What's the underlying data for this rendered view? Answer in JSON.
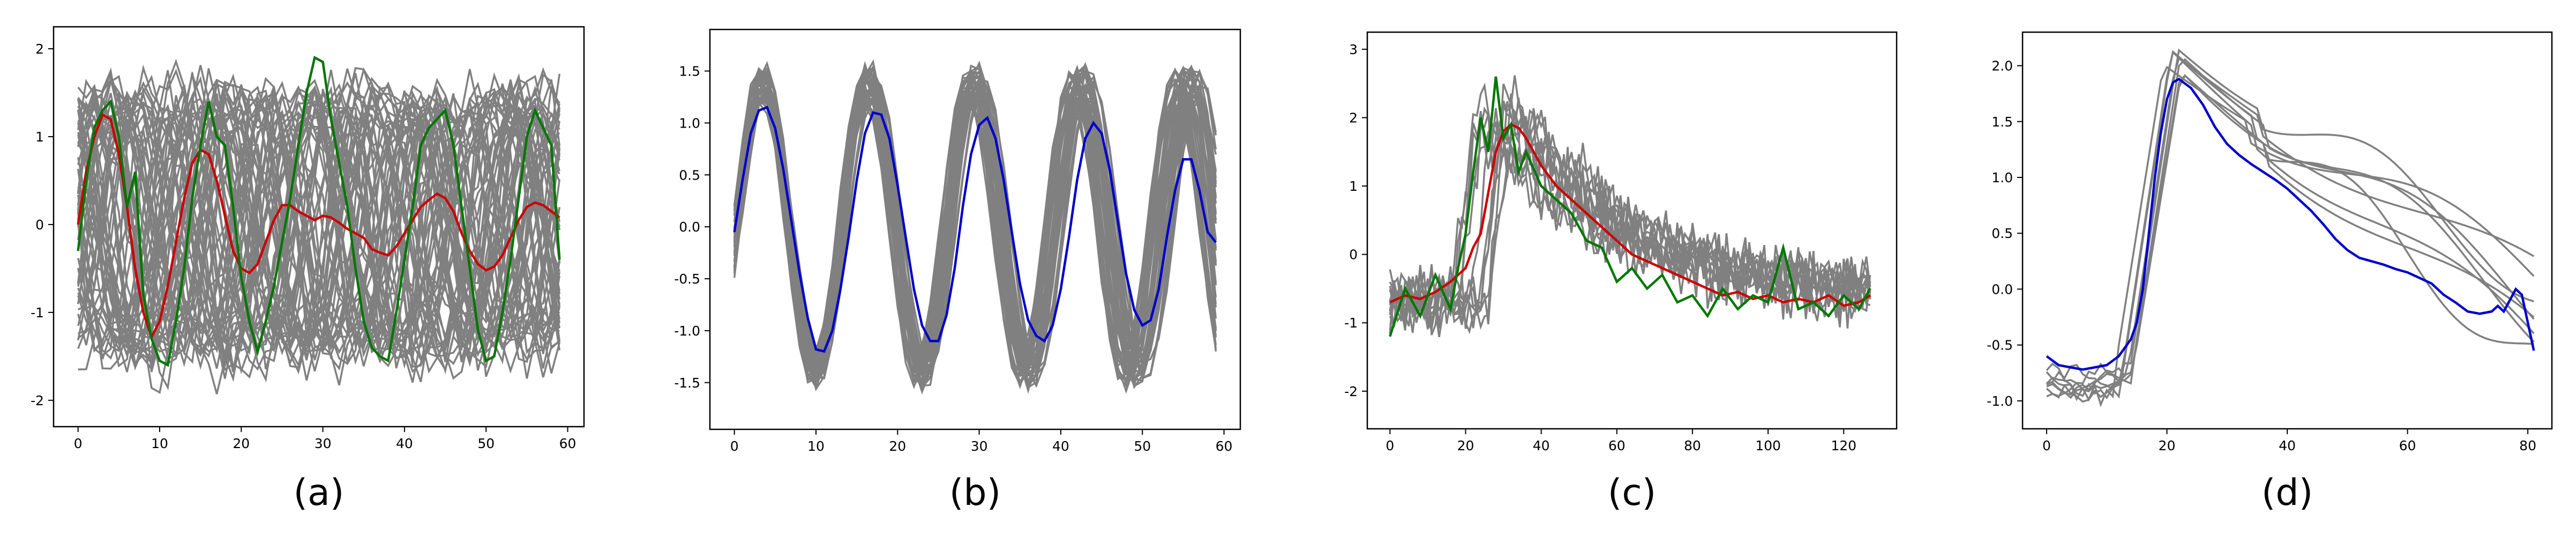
{
  "chart_data": [
    {
      "type": "line",
      "caption": "(a)",
      "xlim": [
        -3,
        62
      ],
      "ylim": [
        -2.3,
        2.25
      ],
      "xticks": [
        0,
        10,
        20,
        30,
        40,
        50,
        60
      ],
      "yticks": [
        -2,
        -1,
        0,
        1,
        2
      ],
      "grid": false,
      "background_series": {
        "color": "#808080",
        "count": 60,
        "length": 60,
        "description_of_shape": "noisy sinusoids, amplitude 1.5, periods 10-25"
      },
      "series": [
        {
          "color": "#cc0000",
          "x": [
            0,
            1,
            2,
            3,
            4,
            5,
            6,
            7,
            8,
            9,
            10,
            11,
            12,
            13,
            14,
            15,
            16,
            17,
            18,
            19,
            20,
            21,
            22,
            23,
            24,
            25,
            26,
            27,
            28,
            29,
            30,
            31,
            32,
            33,
            34,
            35,
            36,
            37,
            38,
            39,
            40,
            41,
            42,
            43,
            44,
            45,
            46,
            47,
            48,
            49,
            50,
            51,
            52,
            53,
            54,
            55,
            56,
            57,
            58,
            59
          ],
          "y": [
            0.0,
            0.6,
            1.0,
            1.25,
            1.2,
            0.8,
            0.2,
            -0.5,
            -1.0,
            -1.28,
            -1.1,
            -0.7,
            -0.2,
            0.3,
            0.7,
            0.85,
            0.8,
            0.5,
            0.1,
            -0.3,
            -0.5,
            -0.55,
            -0.45,
            -0.2,
            0.05,
            0.22,
            0.22,
            0.15,
            0.1,
            0.05,
            0.1,
            0.08,
            0.02,
            -0.05,
            -0.1,
            -0.15,
            -0.28,
            -0.32,
            -0.35,
            -0.25,
            -0.1,
            0.05,
            0.2,
            0.28,
            0.35,
            0.3,
            0.15,
            -0.1,
            -0.3,
            -0.45,
            -0.52,
            -0.48,
            -0.35,
            -0.15,
            0.05,
            0.2,
            0.25,
            0.22,
            0.15,
            0.08
          ]
        },
        {
          "color": "#007700",
          "x": [
            0,
            1,
            2,
            3,
            4,
            5,
            6,
            7,
            8,
            9,
            10,
            11,
            12,
            13,
            14,
            15,
            16,
            17,
            18,
            19,
            20,
            21,
            22,
            23,
            24,
            25,
            26,
            27,
            28,
            29,
            30,
            31,
            32,
            33,
            34,
            35,
            36,
            37,
            38,
            39,
            40,
            41,
            42,
            43,
            44,
            45,
            46,
            47,
            48,
            49,
            50,
            51,
            52,
            53,
            54,
            55,
            56,
            57,
            58,
            59
          ],
          "y": [
            -0.3,
            0.5,
            1.1,
            1.3,
            1.4,
            1.0,
            0.2,
            0.6,
            -0.8,
            -1.3,
            -1.55,
            -1.6,
            -1.1,
            -0.5,
            0.3,
            0.9,
            1.4,
            1.0,
            0.9,
            0.2,
            -0.6,
            -1.1,
            -1.45,
            -1.1,
            -0.7,
            -0.2,
            0.3,
            0.9,
            1.5,
            1.9,
            1.85,
            1.2,
            0.7,
            0.2,
            -0.5,
            -1.1,
            -1.4,
            -1.5,
            -1.55,
            -1.0,
            -0.4,
            0.2,
            0.9,
            1.1,
            1.2,
            1.3,
            0.9,
            0.2,
            -0.5,
            -1.2,
            -1.55,
            -1.5,
            -1.0,
            -0.4,
            0.3,
            1.0,
            1.3,
            1.1,
            0.9,
            -0.4
          ]
        }
      ]
    },
    {
      "type": "line",
      "caption": "(b)",
      "xlim": [
        -3,
        62
      ],
      "ylim": [
        -1.95,
        1.9
      ],
      "xticks": [
        0,
        10,
        20,
        30,
        40,
        50,
        60
      ],
      "yticks": [
        -1.5,
        -1.0,
        -0.5,
        0.0,
        0.5,
        1.0,
        1.5
      ],
      "grid": false,
      "background_series": {
        "color": "#808080",
        "count": 40,
        "length": 60,
        "description_of_shape": "sinusoids, amplitude 1.3, period 13"
      },
      "series": [
        {
          "color": "#0000cc",
          "x": [
            0,
            1,
            2,
            3,
            4,
            5,
            6,
            7,
            8,
            9,
            10,
            11,
            12,
            13,
            14,
            15,
            16,
            17,
            18,
            19,
            20,
            21,
            22,
            23,
            24,
            25,
            26,
            27,
            28,
            29,
            30,
            31,
            32,
            33,
            34,
            35,
            36,
            37,
            38,
            39,
            40,
            41,
            42,
            43,
            44,
            45,
            46,
            47,
            48,
            49,
            50,
            51,
            52,
            53,
            54,
            55,
            56,
            57,
            58,
            59
          ],
          "y": [
            -0.05,
            0.45,
            0.9,
            1.12,
            1.15,
            0.95,
            0.55,
            0.05,
            -0.45,
            -0.88,
            -1.18,
            -1.2,
            -1.0,
            -0.6,
            -0.1,
            0.45,
            0.9,
            1.1,
            1.08,
            0.85,
            0.4,
            -0.1,
            -0.6,
            -0.95,
            -1.1,
            -1.1,
            -0.85,
            -0.4,
            0.2,
            0.7,
            0.98,
            1.05,
            0.85,
            0.45,
            -0.05,
            -0.55,
            -0.9,
            -1.05,
            -1.1,
            -0.95,
            -0.6,
            -0.1,
            0.45,
            0.85,
            1.0,
            0.9,
            0.55,
            0.05,
            -0.45,
            -0.8,
            -0.95,
            -0.9,
            -0.6,
            -0.1,
            0.35,
            0.65,
            0.65,
            0.35,
            -0.05,
            -0.15
          ]
        }
      ]
    },
    {
      "type": "line",
      "caption": "(c)",
      "xlim": [
        -6,
        134
      ],
      "ylim": [
        -2.55,
        3.25
      ],
      "xticks": [
        0,
        20,
        40,
        60,
        80,
        100,
        120
      ],
      "yticks": [
        -2,
        -1,
        0,
        1,
        2,
        3
      ],
      "grid": false,
      "background_series": {
        "color": "#808080",
        "count": 12,
        "length": 128,
        "description_of_shape": "noisy step signals rising near x=20 then decaying"
      },
      "series": [
        {
          "color": "#cc0000",
          "x": [
            0,
            4,
            8,
            12,
            16,
            20,
            22,
            24,
            26,
            28,
            30,
            32,
            34,
            36,
            38,
            40,
            44,
            48,
            52,
            56,
            60,
            64,
            68,
            72,
            76,
            80,
            84,
            88,
            92,
            96,
            100,
            104,
            108,
            112,
            116,
            120,
            124,
            127
          ],
          "y": [
            -0.7,
            -0.6,
            -0.65,
            -0.55,
            -0.4,
            -0.2,
            0.1,
            0.3,
            0.9,
            1.5,
            1.8,
            1.9,
            1.85,
            1.7,
            1.5,
            1.3,
            1.0,
            0.8,
            0.6,
            0.4,
            0.2,
            0.0,
            -0.1,
            -0.2,
            -0.3,
            -0.4,
            -0.5,
            -0.6,
            -0.55,
            -0.65,
            -0.6,
            -0.7,
            -0.65,
            -0.7,
            -0.6,
            -0.75,
            -0.7,
            -0.6
          ]
        },
        {
          "color": "#007700",
          "x": [
            0,
            4,
            8,
            12,
            16,
            18,
            20,
            22,
            24,
            26,
            28,
            30,
            32,
            34,
            36,
            40,
            44,
            48,
            52,
            56,
            60,
            64,
            68,
            72,
            76,
            80,
            84,
            88,
            92,
            96,
            100,
            104,
            108,
            112,
            116,
            120,
            124,
            127
          ],
          "y": [
            -1.2,
            -0.5,
            -0.9,
            -0.3,
            -0.8,
            -0.2,
            0.3,
            1.2,
            2.0,
            1.5,
            2.6,
            1.7,
            1.9,
            1.2,
            1.5,
            1.0,
            0.8,
            0.6,
            0.2,
            0.1,
            -0.4,
            -0.2,
            -0.5,
            -0.3,
            -0.7,
            -0.6,
            -0.9,
            -0.5,
            -0.8,
            -0.6,
            -0.7,
            0.1,
            -0.8,
            -0.7,
            -0.9,
            -0.6,
            -0.8,
            -0.5
          ]
        }
      ]
    },
    {
      "type": "line",
      "caption": "(d)",
      "xlim": [
        -4,
        84
      ],
      "ylim": [
        -1.25,
        2.3
      ],
      "xticks": [
        0,
        20,
        40,
        60,
        80
      ],
      "yticks": [
        -1.0,
        -0.5,
        0.0,
        0.5,
        1.0,
        1.5,
        2.0
      ],
      "grid": false,
      "background_series": {
        "color": "#808080",
        "count": 8,
        "length": 82,
        "description_of_shape": "smooth pulses peaking near x=21 then decaying"
      },
      "series": [
        {
          "color": "#0000cc",
          "x": [
            0,
            2,
            4,
            6,
            8,
            10,
            12,
            14,
            15,
            16,
            17,
            18,
            19,
            20,
            21,
            22,
            24,
            26,
            28,
            30,
            32,
            34,
            36,
            38,
            40,
            42,
            44,
            46,
            48,
            50,
            52,
            54,
            56,
            58,
            60,
            62,
            64,
            66,
            68,
            70,
            72,
            74,
            75,
            76,
            77,
            78,
            79,
            80,
            81
          ],
          "y": [
            -0.6,
            -0.68,
            -0.7,
            -0.72,
            -0.7,
            -0.68,
            -0.6,
            -0.45,
            -0.3,
            0.0,
            0.5,
            1.0,
            1.4,
            1.7,
            1.85,
            1.88,
            1.8,
            1.65,
            1.45,
            1.3,
            1.2,
            1.12,
            1.05,
            0.98,
            0.9,
            0.8,
            0.7,
            0.58,
            0.45,
            0.35,
            0.28,
            0.25,
            0.22,
            0.18,
            0.15,
            0.1,
            0.05,
            -0.05,
            -0.12,
            -0.2,
            -0.22,
            -0.2,
            -0.15,
            -0.2,
            -0.1,
            0.0,
            -0.05,
            -0.3,
            -0.55
          ]
        }
      ]
    }
  ]
}
